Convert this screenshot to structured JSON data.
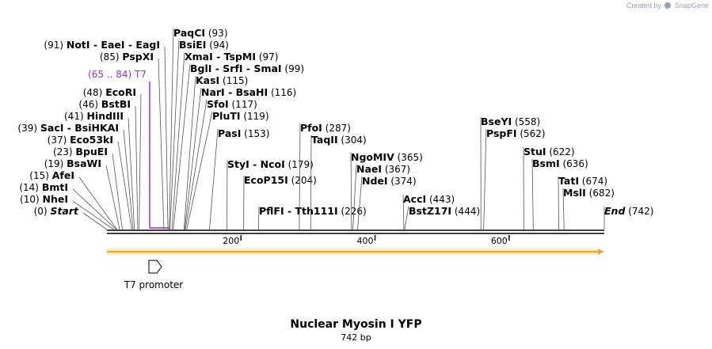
{
  "credit": {
    "prefix": "Created by",
    "brand": "SnapGene"
  },
  "title": "Nuclear Myosin I YFP",
  "length_label": "742 bp",
  "total_bp": 742,
  "ticks": [
    {
      "pos": 200,
      "label": "200"
    },
    {
      "pos": 400,
      "label": "400"
    },
    {
      "pos": 600,
      "label": "600"
    }
  ],
  "feature": {
    "label": "T7 promoter",
    "start": 65,
    "end": 84
  },
  "primer": {
    "range": "(65 .. 84)",
    "name": "T7",
    "color": "#9933cc"
  },
  "orf": {
    "start": 0,
    "end": 742,
    "color": "#e8a33a"
  },
  "sites": [
    {
      "pos": "(0)",
      "name": "Start",
      "italic": true,
      "bp": 0
    },
    {
      "pos": "(10)",
      "name": "NheI",
      "bp": 10
    },
    {
      "pos": "(14)",
      "name": "BmtI",
      "bp": 14
    },
    {
      "pos": "(15)",
      "name": "AfeI",
      "bp": 15
    },
    {
      "pos": "(19)",
      "name": "BsaWI",
      "bp": 19
    },
    {
      "pos": "(23)",
      "name": "BpuEI",
      "bp": 23
    },
    {
      "pos": "(37)",
      "name": "Eco53kI",
      "bp": 37
    },
    {
      "pos": "(39)",
      "name": "SacI  - BsiHKAI",
      "bp": 39
    },
    {
      "pos": "(41)",
      "name": "HindIII",
      "bp": 41
    },
    {
      "pos": "(46)",
      "name": "BstBI",
      "bp": 46
    },
    {
      "pos": "(48)",
      "name": "EcoRI",
      "bp": 48
    },
    {
      "pos": "(85)",
      "name": "PspXI",
      "bp": 85
    },
    {
      "pos": "(91)",
      "name": "NotI  - EaeI  - EagI",
      "bp": 91
    },
    {
      "pos": "(93)",
      "name": "PaqCI",
      "bp": 93,
      "right": true
    },
    {
      "pos": "(94)",
      "name": "BsiEI",
      "bp": 94,
      "right": true
    },
    {
      "pos": "(97)",
      "name": "XmaI  - TspMI",
      "bp": 97,
      "right": true
    },
    {
      "pos": "(99)",
      "name": "BglI  - SrfI  - SmaI",
      "bp": 99,
      "right": true
    },
    {
      "pos": "(115)",
      "name": "KasI",
      "bp": 115,
      "right": true
    },
    {
      "pos": "(116)",
      "name": "NarI  - BsaHI",
      "bp": 116,
      "right": true
    },
    {
      "pos": "(117)",
      "name": "SfoI",
      "bp": 117,
      "right": true
    },
    {
      "pos": "(119)",
      "name": "PluTI",
      "bp": 119,
      "right": true
    },
    {
      "pos": "(153)",
      "name": "PasI",
      "bp": 153,
      "right": true
    },
    {
      "pos": "(179)",
      "name": "StyI  - NcoI",
      "bp": 179,
      "right": true
    },
    {
      "pos": "(204)",
      "name": "EcoP15I",
      "bp": 204,
      "right": true
    },
    {
      "pos": "(226)",
      "name": "PflFI  - Tth111I",
      "bp": 226,
      "right": true
    },
    {
      "pos": "(287)",
      "name": "PfoI",
      "bp": 287,
      "right": true
    },
    {
      "pos": "(304)",
      "name": "TaqII",
      "bp": 304,
      "right": true
    },
    {
      "pos": "(365)",
      "name": "NgoMIV",
      "bp": 365,
      "right": true
    },
    {
      "pos": "(367)",
      "name": "NaeI",
      "bp": 367,
      "right": true
    },
    {
      "pos": "(374)",
      "name": "NdeI",
      "bp": 374,
      "right": true
    },
    {
      "pos": "(443)",
      "name": "AccI",
      "bp": 443,
      "right": true
    },
    {
      "pos": "(444)",
      "name": "BstZ17I",
      "bp": 444,
      "right": true
    },
    {
      "pos": "(558)",
      "name": "BseYI",
      "bp": 558,
      "right": true
    },
    {
      "pos": "(562)",
      "name": "PspFI",
      "bp": 562,
      "right": true
    },
    {
      "pos": "(622)",
      "name": "StuI",
      "bp": 622,
      "right": true
    },
    {
      "pos": "(636)",
      "name": "BsmI",
      "bp": 636,
      "right": true
    },
    {
      "pos": "(674)",
      "name": "TatI",
      "bp": 674,
      "right": true
    },
    {
      "pos": "(682)",
      "name": "MslI",
      "bp": 682,
      "right": true
    },
    {
      "pos": "(742)",
      "name": "End",
      "italic": true,
      "bp": 742,
      "right": true
    }
  ]
}
